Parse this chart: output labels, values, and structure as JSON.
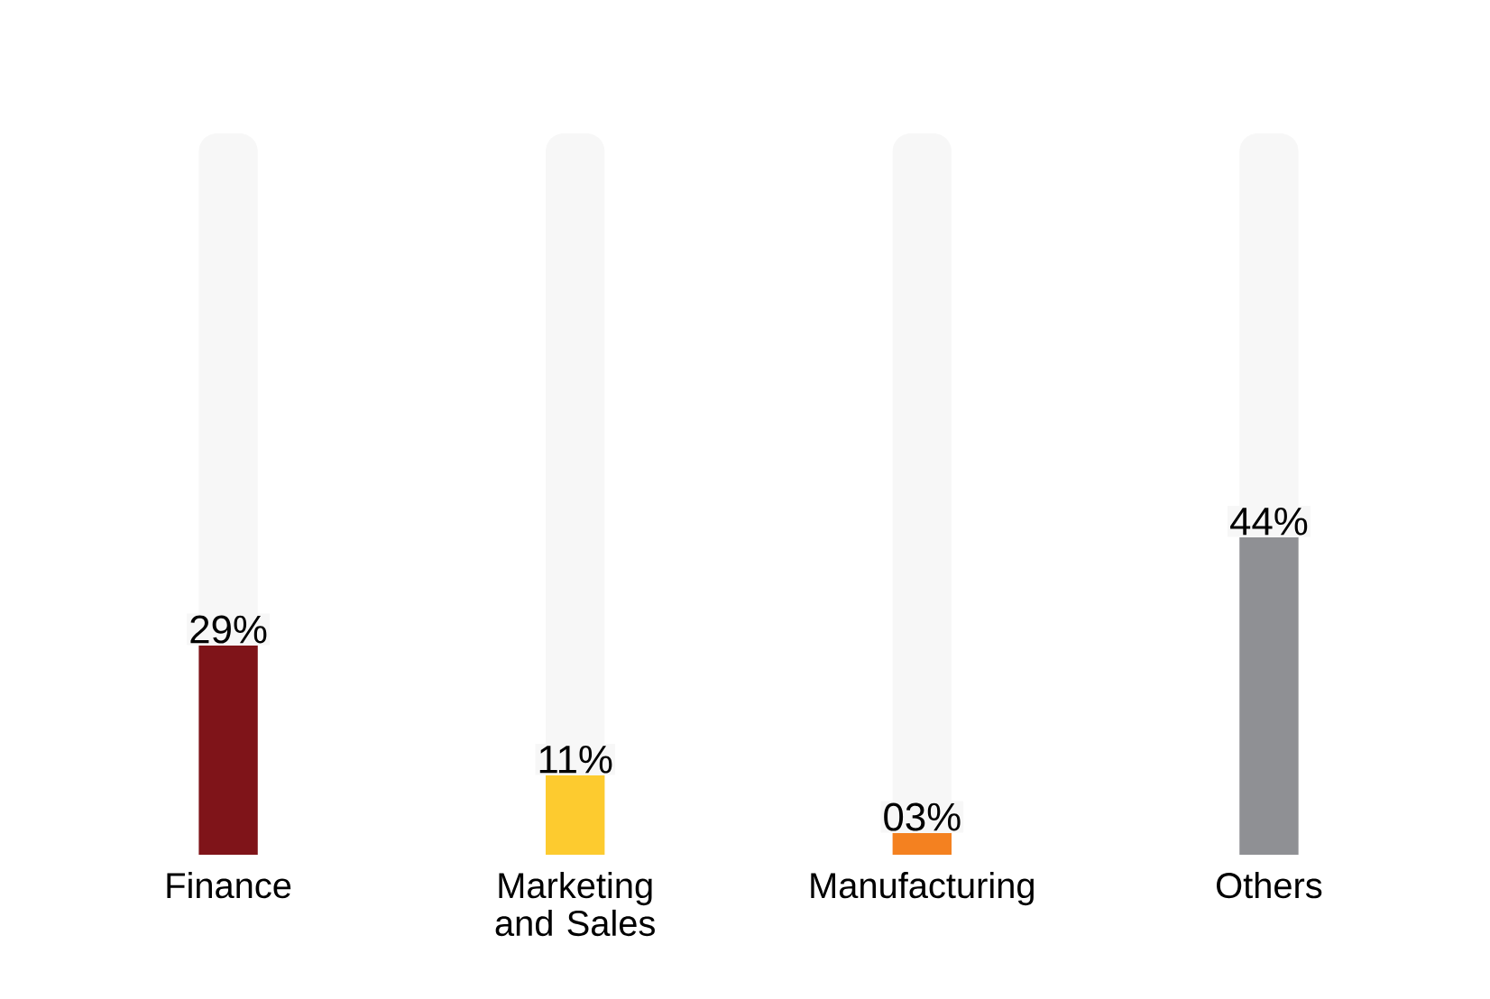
{
  "chart_data": {
    "type": "bar",
    "categories": [
      "Finance",
      "Marketing and Sales",
      "Manufacturing",
      "Others"
    ],
    "values": [
      29,
      11,
      3,
      44
    ],
    "value_labels": [
      "29%",
      "11%",
      "03%",
      "44%"
    ],
    "colors": [
      "#7f1419",
      "#fdcb2f",
      "#f48120",
      "#8f9094"
    ],
    "ylim": [
      0,
      100
    ],
    "tick_labels": "x"
  }
}
